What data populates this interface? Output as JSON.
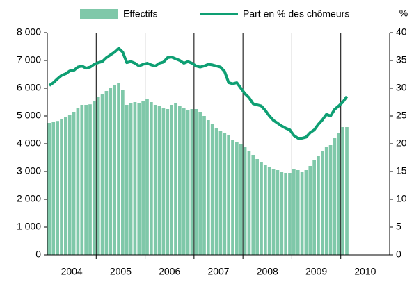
{
  "chart_data": {
    "type": "bar_line",
    "categories": [
      null,
      null,
      null,
      null,
      null,
      null,
      null,
      null,
      null,
      null,
      null,
      null,
      null,
      null,
      null,
      null,
      null,
      null,
      null,
      null,
      null,
      null,
      null,
      null,
      null,
      null,
      null,
      null,
      null,
      null,
      null,
      null,
      null,
      null,
      null,
      null,
      null,
      null,
      null,
      null,
      null,
      null,
      null,
      null,
      null,
      null,
      null,
      null,
      null,
      null,
      null,
      null,
      null,
      null,
      null,
      null,
      null,
      null,
      null,
      null,
      null,
      null,
      null,
      null,
      null,
      null,
      null,
      null,
      null,
      null,
      null,
      null,
      null,
      null
    ],
    "year_labels": [
      "2004",
      "2005",
      "2006",
      "2007",
      "2008",
      "2009",
      "2010"
    ],
    "y2_label": "%",
    "series": [
      {
        "name": "Effectifs",
        "color": "#7fc8a9",
        "values": [
          4750,
          4780,
          4820,
          4900,
          4950,
          5050,
          5150,
          5300,
          5400,
          5400,
          5420,
          5550,
          5700,
          5800,
          5900,
          6000,
          6100,
          6200,
          5950,
          5400,
          5450,
          5500,
          5450,
          5550,
          5600,
          5500,
          5400,
          5350,
          5300,
          5250,
          5400,
          5450,
          5350,
          5300,
          5200,
          5250,
          5250,
          5150,
          5000,
          4850,
          4700,
          4550,
          4450,
          4400,
          4300,
          4150,
          4050,
          4000,
          3900,
          3750,
          3600,
          3450,
          3350,
          3250,
          3150,
          3100,
          3050,
          3000,
          2950,
          2950,
          3100,
          3050,
          3000,
          3050,
          3200,
          3400,
          3550,
          3750,
          3900,
          3950,
          4200,
          4400,
          4600,
          4600
        ]
      },
      {
        "name": "Part en % des chômeurs",
        "color": "#0e9f73",
        "axis": "y2",
        "values": [
          30.5,
          31,
          31.7,
          32.3,
          32.6,
          33.1,
          33.2,
          33.8,
          34,
          33.6,
          33.8,
          34.3,
          34.6,
          34.8,
          35.5,
          36,
          36.5,
          37.2,
          36.5,
          34.6,
          34.8,
          34.5,
          34,
          34.3,
          34.5,
          34.2,
          34,
          34.5,
          34.7,
          35.5,
          35.6,
          35.3,
          35,
          34.5,
          34.8,
          34.5,
          34,
          33.8,
          34,
          34.3,
          34.2,
          34,
          33.8,
          33,
          31,
          30.8,
          31,
          30,
          29,
          28.3,
          27.2,
          27,
          26.8,
          26,
          25,
          24.2,
          23.7,
          23.2,
          22.8,
          22.5,
          21.5,
          21,
          21,
          21.2,
          22,
          22.5,
          23.5,
          24.3,
          25.3,
          25,
          26.2,
          26.8,
          27.5,
          28.5
        ]
      }
    ],
    "ylim": [
      0,
      8000
    ],
    "yticks": [
      {
        "value": 0,
        "label": "0"
      },
      {
        "value": 1000,
        "label": "1 000"
      },
      {
        "value": 2000,
        "label": "2 000"
      },
      {
        "value": 3000,
        "label": "3 000"
      },
      {
        "value": 4000,
        "label": "4 000"
      },
      {
        "value": 5000,
        "label": "5 000"
      },
      {
        "value": 6000,
        "label": "6 000"
      },
      {
        "value": 7000,
        "label": "7 000"
      },
      {
        "value": 8000,
        "label": "8 000"
      }
    ],
    "y2lim": [
      0,
      40
    ],
    "y2ticks": [
      0,
      5,
      10,
      15,
      20,
      25,
      30,
      35,
      40
    ]
  }
}
